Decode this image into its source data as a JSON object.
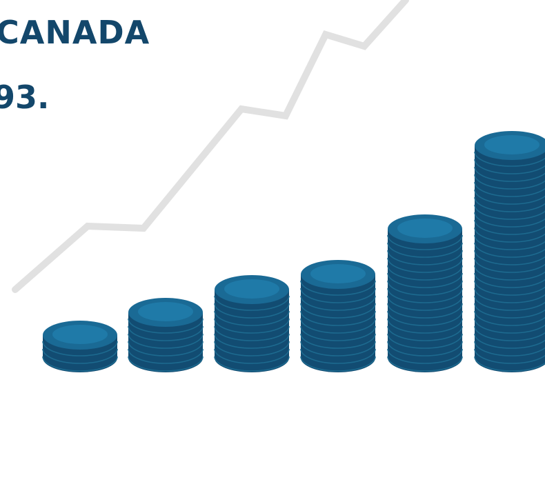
{
  "headline": {
    "line1": "CANADA",
    "line2": "93."
  },
  "colors": {
    "text": "#13476b",
    "coin_body": "#124c72",
    "coin_edge_line": "#1d6a8f",
    "coin_top": "#1a6a95",
    "coin_top_inner": "#1f7aa8",
    "trend_line": "#e1e1e1",
    "background": "#ffffff"
  },
  "illustration": {
    "trend_line": "rising-trend-line",
    "coin_stack_coins": [
      3,
      6,
      9,
      11,
      17,
      28
    ]
  }
}
